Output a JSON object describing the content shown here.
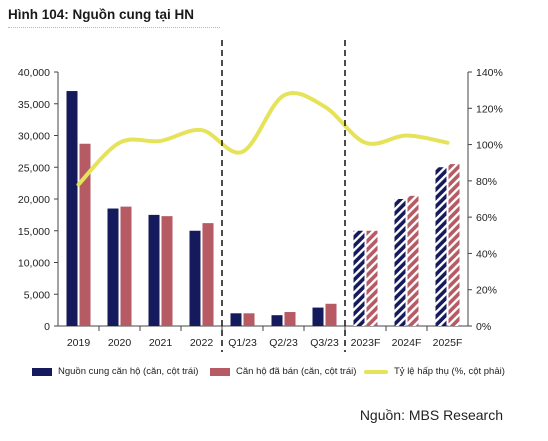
{
  "header": {
    "title": "Hình 104: Nguồn cung tại HN"
  },
  "source": "Nguồn: MBS Research",
  "colors": {
    "supply": "#151a5c",
    "sold": "#b65a63",
    "absorption": "#e6e35a",
    "forecast_stripe": "#ffffff",
    "divider": "#111111"
  },
  "chart_data": {
    "type": "bar",
    "categories": [
      "2019",
      "2020",
      "2021",
      "2022",
      "Q1/23",
      "Q2/23",
      "Q3/23",
      "2023F",
      "2024F",
      "2025F"
    ],
    "forecast_categories": [
      "2023F",
      "2024F",
      "2025F"
    ],
    "series": [
      {
        "name": "Nguồn cung căn hộ (căn, cột trái)",
        "type": "bar",
        "axis": "left",
        "values": [
          37000,
          18500,
          17500,
          15000,
          2000,
          1700,
          2900,
          15000,
          20000,
          25000
        ]
      },
      {
        "name": "Căn hộ đã bán (căn, cột trái)",
        "type": "bar",
        "axis": "left",
        "values": [
          28700,
          18800,
          17300,
          16200,
          2000,
          2200,
          3500,
          15000,
          20500,
          25500
        ]
      },
      {
        "name": "Tỷ lệ hấp thụ (%, cột phải)",
        "type": "line",
        "axis": "right",
        "values": [
          78,
          101,
          102,
          108,
          96,
          127,
          121,
          101,
          105,
          101
        ]
      }
    ],
    "y_left": {
      "min": 0,
      "max": 40000,
      "ticks": [
        "0",
        "5,000",
        "10,000",
        "15,000",
        "20,000",
        "25,000",
        "30,000",
        "35,000",
        "40,000"
      ]
    },
    "y_right": {
      "min": 0,
      "max": 140,
      "ticks": [
        "0%",
        "20%",
        "40%",
        "60%",
        "80%",
        "100%",
        "120%",
        "140%"
      ]
    },
    "dividers_after": [
      "2022",
      "Q3/23"
    ],
    "legend_position": "bottom",
    "grid": false
  }
}
